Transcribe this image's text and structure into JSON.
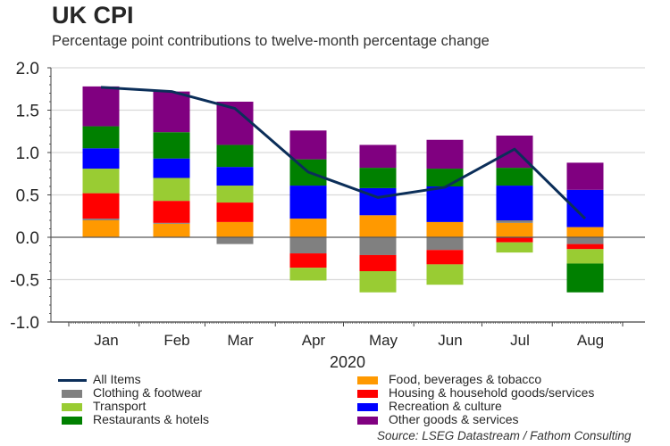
{
  "header": {
    "title": "UK CPI",
    "subtitle": "Percentage point contributions to twelve-month percentage change"
  },
  "source": "Source: LSEG Datastream / Fathom Consulting",
  "chart_data": {
    "type": "bar",
    "stacked": true,
    "title": "UK CPI",
    "subtitle": "Percentage point contributions to twelve-month percentage change",
    "xlabel": "2020",
    "ylabel": "",
    "categories": [
      "Jan",
      "Feb",
      "Mar",
      "Apr",
      "May",
      "Jun",
      "Jul",
      "Aug"
    ],
    "ylim": [
      -1.0,
      2.0
    ],
    "yticks": [
      -1.0,
      -0.5,
      0.0,
      0.5,
      1.0,
      1.5,
      2.0
    ],
    "ytick_labels": [
      "-1.0",
      "-0.5",
      "0.0",
      "0.5",
      "1.0",
      "1.5",
      "2.0"
    ],
    "grid": true,
    "legend_position": "bottom",
    "series": [
      {
        "name": "Food, beverages & tobacco",
        "color": "#ff9900",
        "values": [
          0.2,
          0.16,
          0.18,
          0.22,
          0.26,
          0.18,
          0.17,
          0.12
        ]
      },
      {
        "name": "Clothing & footwear",
        "color": "#808080",
        "values": [
          0.02,
          0.01,
          -0.08,
          -0.19,
          -0.21,
          -0.15,
          0.03,
          -0.08
        ]
      },
      {
        "name": "Housing & household goods/services",
        "color": "#ff0000",
        "values": [
          0.3,
          0.26,
          0.23,
          -0.17,
          -0.19,
          -0.17,
          -0.06,
          -0.06
        ]
      },
      {
        "name": "Transport",
        "color": "#99cc33",
        "values": [
          0.29,
          0.27,
          0.2,
          -0.15,
          -0.25,
          -0.24,
          -0.12,
          -0.17
        ]
      },
      {
        "name": "Recreation & culture",
        "color": "#0000ff",
        "values": [
          0.24,
          0.23,
          0.22,
          0.39,
          0.32,
          0.42,
          0.41,
          0.44
        ]
      },
      {
        "name": "Restaurants & hotels",
        "color": "#008000",
        "values": [
          0.26,
          0.31,
          0.26,
          0.31,
          0.24,
          0.21,
          0.21,
          -0.34
        ]
      },
      {
        "name": "Other goods & services",
        "color": "#800080",
        "values": [
          0.47,
          0.48,
          0.51,
          0.34,
          0.27,
          0.34,
          0.38,
          0.32
        ]
      }
    ],
    "line_series": {
      "name": "All Items",
      "color": "#0b2e59",
      "values": [
        1.77,
        1.72,
        1.52,
        0.77,
        0.47,
        0.59,
        1.04,
        0.22
      ]
    }
  },
  "legend": {
    "left": [
      {
        "label": "All Items",
        "type": "line",
        "color": "#0b2e59"
      },
      {
        "label": "Clothing & footwear",
        "type": "box",
        "color": "#808080"
      },
      {
        "label": "Transport",
        "type": "box",
        "color": "#99cc33"
      },
      {
        "label": "Restaurants & hotels",
        "type": "box",
        "color": "#008000"
      }
    ],
    "right": [
      {
        "label": "Food, beverages & tobacco",
        "type": "box",
        "color": "#ff9900"
      },
      {
        "label": "Housing & household goods/services",
        "type": "box",
        "color": "#ff0000"
      },
      {
        "label": "Recreation & culture",
        "type": "box",
        "color": "#0000ff"
      },
      {
        "label": "Other goods & services",
        "type": "box",
        "color": "#800080"
      }
    ]
  }
}
